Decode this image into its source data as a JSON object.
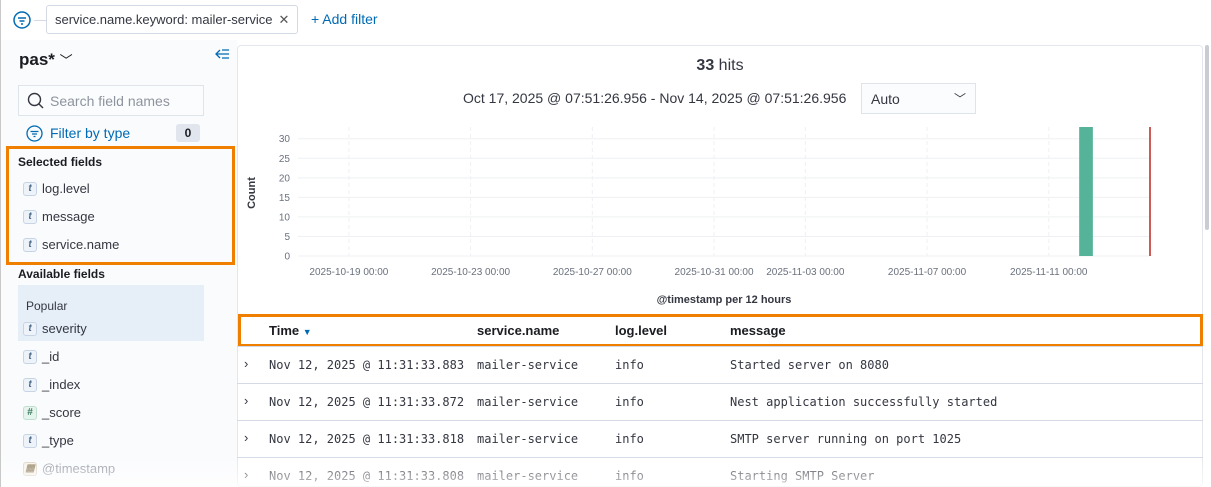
{
  "filter_bar": {
    "filter": "service.name.keyword: mailer-service",
    "add_filter": "+ Add filter"
  },
  "sidebar": {
    "index_pattern": "pas*",
    "search_placeholder": "Search field names",
    "filter_by_type": "Filter by type",
    "filter_count": "0",
    "selected_title": "Selected fields",
    "selected": [
      {
        "type": "t",
        "name": "log.level"
      },
      {
        "type": "t",
        "name": "message"
      },
      {
        "type": "t",
        "name": "service.name"
      }
    ],
    "available_title": "Available fields",
    "popular_title": "Popular",
    "popular": [
      {
        "type": "t",
        "name": "severity"
      }
    ],
    "available": [
      {
        "type": "t",
        "name": "_id"
      },
      {
        "type": "t",
        "name": "_index"
      },
      {
        "type": "#",
        "name": "_score"
      },
      {
        "type": "t",
        "name": "_type"
      },
      {
        "type": "date",
        "name": "@timestamp"
      }
    ]
  },
  "hits": {
    "count": "33",
    "label": "hits"
  },
  "time_range": "Oct 17, 2025 @ 07:51:26.956 - Nov 14, 2025 @ 07:51:26.956",
  "interval": "Auto",
  "chart_data": {
    "type": "bar",
    "xlabel": "@timestamp per 12 hours",
    "ylabel": "Count",
    "yticks": [
      0,
      5,
      10,
      15,
      20,
      25,
      30
    ],
    "ylim": [
      0,
      33
    ],
    "xlim": [
      "2025-10-17T07:51:26",
      "2025-11-14T07:51:26"
    ],
    "xticks": [
      "2025-10-19 00:00",
      "2025-10-23 00:00",
      "2025-10-27 00:00",
      "2025-10-31 00:00",
      "2025-11-03 00:00",
      "2025-11-07 00:00",
      "2025-11-11 00:00"
    ],
    "bars": [
      {
        "x": "2025-11-12 00:00",
        "value": 33
      }
    ],
    "bar_color": "#54b399",
    "now_marker_color": "#bd271e",
    "grid": true
  },
  "table": {
    "columns": [
      "Time",
      "service.name",
      "log.level",
      "message"
    ],
    "rows": [
      [
        "Nov 12, 2025 @ 11:31:33.883",
        "mailer-service",
        "info",
        "Started server on 8080"
      ],
      [
        "Nov 12, 2025 @ 11:31:33.872",
        "mailer-service",
        "info",
        "Nest application successfully started"
      ],
      [
        "Nov 12, 2025 @ 11:31:33.818",
        "mailer-service",
        "info",
        "SMTP server running on port 1025"
      ],
      [
        "Nov 12, 2025 @ 11:31:33.808",
        "mailer-service",
        "info",
        "Starting SMTP Server"
      ]
    ]
  },
  "highlight_color": "#f07f00"
}
